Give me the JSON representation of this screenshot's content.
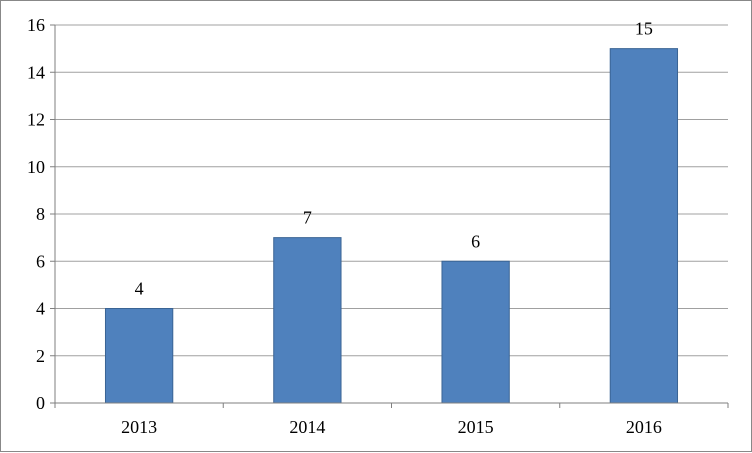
{
  "chart_data": {
    "type": "bar",
    "title": "",
    "xlabel": "",
    "ylabel": "",
    "categories": [
      "2013",
      "2014",
      "2015",
      "2016"
    ],
    "values": [
      4,
      7,
      6,
      15
    ],
    "data_labels": [
      "4",
      "7",
      "6",
      "15"
    ],
    "ylim": [
      0,
      16
    ],
    "yticks": [
      0,
      2,
      4,
      6,
      8,
      10,
      12,
      14,
      16
    ],
    "ytick_labels": [
      "0",
      "2",
      "4",
      "6",
      "8",
      "10",
      "12",
      "14",
      "16"
    ],
    "grid": true,
    "legend": "none",
    "colors": {
      "bar": "#4f81bd",
      "bar_edge": "#3a6494",
      "grid": "#a0a0a0",
      "axis": "#7f7f7f"
    }
  }
}
